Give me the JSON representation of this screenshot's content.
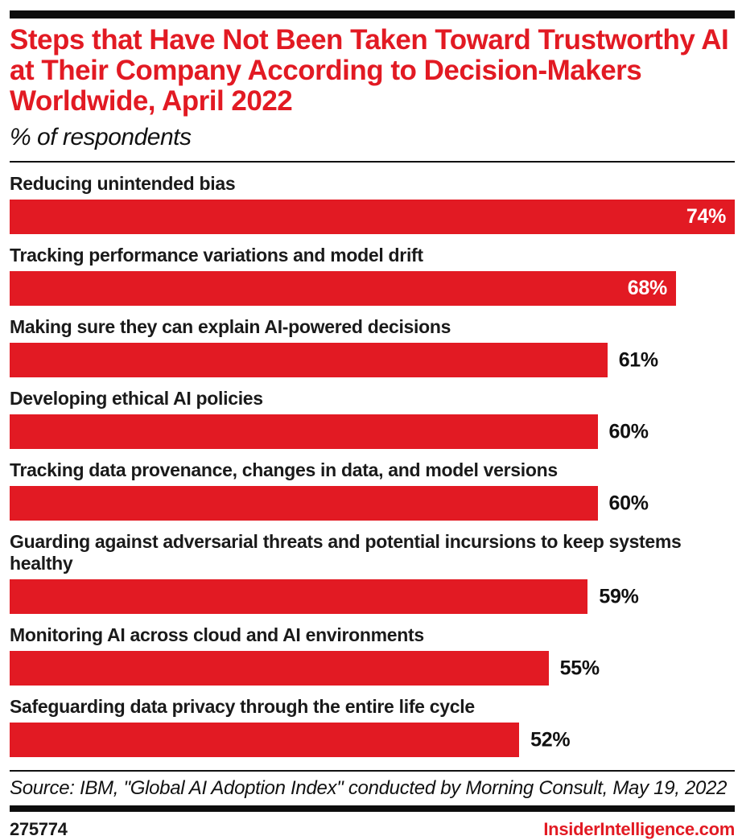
{
  "header": {
    "title": "Steps that Have Not Been Taken Toward Trustworthy AI at Their Company According to Decision-Makers Worldwide, April 2022",
    "subtitle": "% of respondents"
  },
  "chart_data": {
    "type": "bar",
    "orientation": "horizontal",
    "title": "Steps that Have Not Been Taken Toward Trustworthy AI at Their Company According to Decision-Makers Worldwide, April 2022",
    "subtitle": "% of respondents",
    "unit": "% of respondents",
    "value_suffix": "%",
    "xlim": [
      0,
      74
    ],
    "grid": false,
    "legend": false,
    "bar_color": "#e21a23",
    "categories": [
      "Reducing unintended bias",
      "Tracking performance variations and model drift",
      "Making sure they can explain AI-powered decisions",
      "Developing ethical AI policies",
      "Tracking data provenance, changes in data, and model versions",
      "Guarding against adversarial threats and potential incursions to keep systems healthy",
      "Monitoring AI across cloud and AI environments",
      "Safeguarding data privacy through the entire life cycle"
    ],
    "values": [
      74,
      68,
      61,
      60,
      60,
      59,
      55,
      52
    ],
    "value_labels": [
      "74%",
      "68%",
      "61%",
      "60%",
      "60%",
      "59%",
      "55%",
      "52%"
    ],
    "value_label_positions": [
      "inside",
      "inside",
      "outside",
      "outside",
      "outside",
      "outside",
      "outside",
      "outside"
    ]
  },
  "footer": {
    "source": "Source: IBM, \"Global AI Adoption Index\" conducted by Morning Consult, May 19, 2022",
    "chart_id": "275774",
    "site": "InsiderIntelligence.com"
  },
  "colors": {
    "accent_red": "#e21a23",
    "title_red": "#e21a23",
    "text_black": "#111111",
    "rule_black": "#0d0d0d",
    "inside_label_white": "#ffffff"
  }
}
